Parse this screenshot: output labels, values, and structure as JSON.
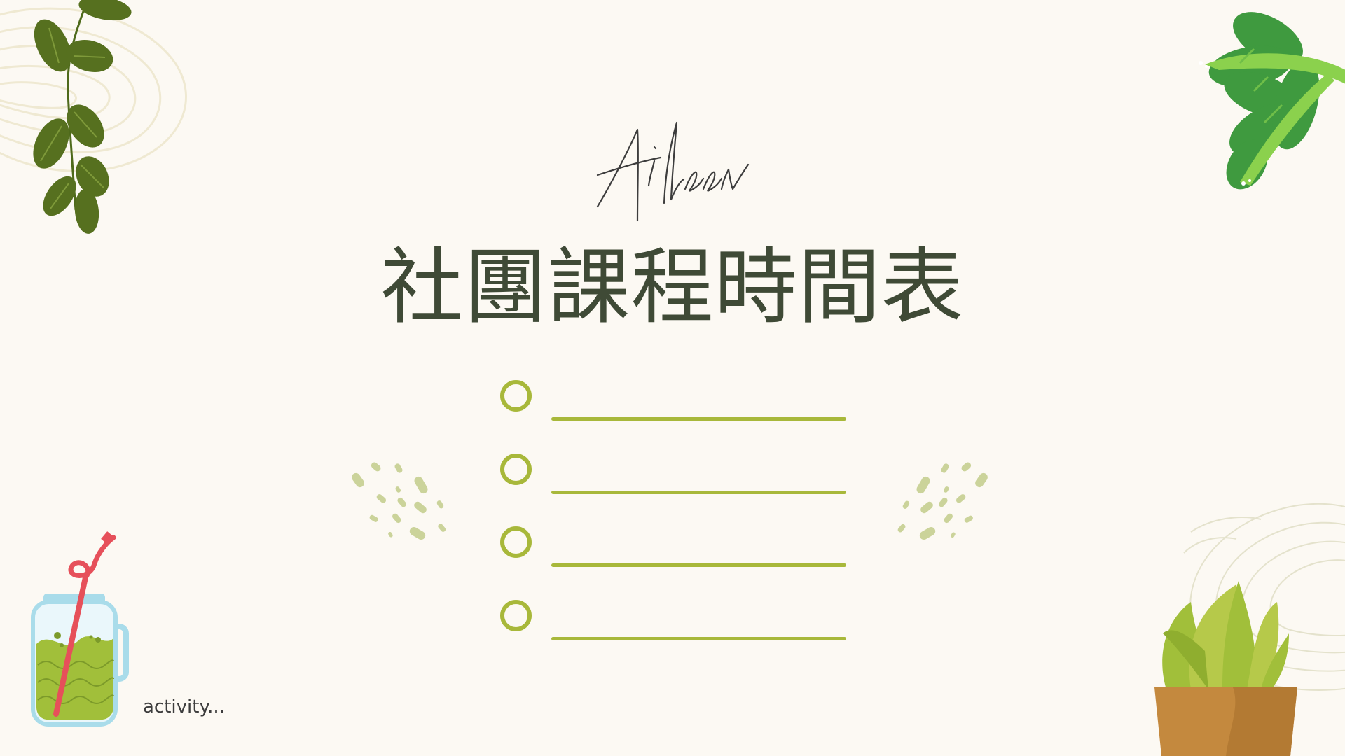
{
  "slide": {
    "title": "社團課程時間表",
    "caption": "activity...",
    "list_items": [
      "",
      "",
      "",
      ""
    ]
  },
  "colors": {
    "background": "#fcf9f3",
    "title_text": "#3f4a36",
    "accent_green": "#a8b83a",
    "leaf_dark": "#56701f",
    "leaf_bright": "#5aa53e",
    "pot_orange": "#c4893e",
    "jar_blue": "#a9dcea",
    "straw_red": "#e6505a"
  },
  "icons": {
    "top_left": "vine-leaves-icon",
    "top_right": "tropical-leaf-icon",
    "bottom_left": "smoothie-jar-icon",
    "bottom_right": "potted-plant-icon",
    "signature": "aileen-signature-icon",
    "bullet": "circle-bullet-icon"
  }
}
